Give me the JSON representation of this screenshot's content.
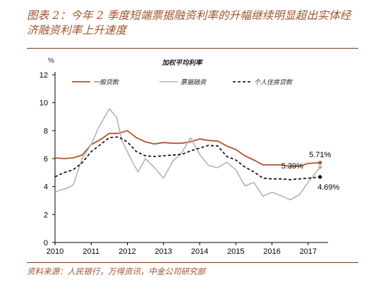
{
  "figure": {
    "title": "图表 2：今年 2 季度短端票据融资利率的升幅继续明显超出实体经济融资利率上升速度",
    "source": "资料来源：人民银行，万得资讯，中金公司研究部"
  },
  "colors": {
    "series_1": "#b5532a",
    "series_2": "#b3b3b3",
    "series_3": "#000000",
    "rule": "#7a3a1a",
    "title": "#a0522d"
  },
  "chart_data": {
    "type": "line",
    "title": "加权平均利率",
    "ylabel": "%",
    "xlabel": "",
    "xlim": [
      2010,
      2017.55
    ],
    "ylim": [
      0,
      12
    ],
    "xticks": [
      "2010",
      "2011",
      "2012",
      "2013",
      "2014",
      "2015",
      "2016",
      "2017"
    ],
    "yticks": [
      "0",
      "2",
      "4",
      "6",
      "8",
      "10",
      "12"
    ],
    "grid": false,
    "legend": "top",
    "series": [
      {
        "name": "一般贷款",
        "style": "solid",
        "end_label": "5.71%",
        "points": [
          [
            2010.0,
            6.05
          ],
          [
            2010.25,
            6.0
          ],
          [
            2010.5,
            6.05
          ],
          [
            2010.75,
            6.25
          ],
          [
            2011.0,
            7.0
          ],
          [
            2011.25,
            7.35
          ],
          [
            2011.5,
            7.8
          ],
          [
            2011.75,
            7.8
          ],
          [
            2012.0,
            8.0
          ],
          [
            2012.25,
            7.5
          ],
          [
            2012.5,
            7.2
          ],
          [
            2012.75,
            7.05
          ],
          [
            2013.0,
            7.15
          ],
          [
            2013.25,
            7.1
          ],
          [
            2013.5,
            7.1
          ],
          [
            2013.75,
            7.2
          ],
          [
            2014.0,
            7.4
          ],
          [
            2014.25,
            7.3
          ],
          [
            2014.5,
            7.25
          ],
          [
            2014.75,
            6.9
          ],
          [
            2015.0,
            6.65
          ],
          [
            2015.25,
            6.2
          ],
          [
            2015.5,
            5.9
          ],
          [
            2015.75,
            5.55
          ],
          [
            2016.0,
            5.55
          ],
          [
            2016.25,
            5.55
          ],
          [
            2016.5,
            5.45
          ],
          [
            2016.75,
            5.45
          ],
          [
            2017.0,
            5.65
          ],
          [
            2017.33,
            5.71
          ]
        ]
      },
      {
        "name": "票据融资",
        "style": "solid",
        "end_label": "",
        "points": [
          [
            2010.0,
            3.6
          ],
          [
            2010.15,
            3.75
          ],
          [
            2010.3,
            3.85
          ],
          [
            2010.5,
            4.1
          ],
          [
            2010.75,
            6.0
          ],
          [
            2011.0,
            7.0
          ],
          [
            2011.2,
            8.2
          ],
          [
            2011.5,
            9.55
          ],
          [
            2011.7,
            9.0
          ],
          [
            2011.85,
            7.3
          ],
          [
            2012.0,
            6.5
          ],
          [
            2012.15,
            5.7
          ],
          [
            2012.3,
            5.05
          ],
          [
            2012.5,
            6.0
          ],
          [
            2012.75,
            5.35
          ],
          [
            2013.0,
            4.6
          ],
          [
            2013.25,
            5.8
          ],
          [
            2013.5,
            6.4
          ],
          [
            2013.75,
            7.5
          ],
          [
            2014.0,
            6.3
          ],
          [
            2014.25,
            5.5
          ],
          [
            2014.5,
            5.35
          ],
          [
            2014.75,
            5.75
          ],
          [
            2015.0,
            5.2
          ],
          [
            2015.25,
            4.05
          ],
          [
            2015.5,
            4.3
          ],
          [
            2015.75,
            3.3
          ],
          [
            2016.0,
            3.6
          ],
          [
            2016.25,
            3.35
          ],
          [
            2016.5,
            3.05
          ],
          [
            2016.75,
            3.4
          ],
          [
            2017.0,
            4.3
          ],
          [
            2017.33,
            5.39
          ]
        ]
      },
      {
        "name": "个人住房贷款",
        "style": "dashed",
        "end_label": "",
        "points": [
          [
            2010.0,
            4.7
          ],
          [
            2010.25,
            5.0
          ],
          [
            2010.5,
            5.2
          ],
          [
            2010.75,
            5.7
          ],
          [
            2011.0,
            6.5
          ],
          [
            2011.25,
            7.0
          ],
          [
            2011.5,
            7.5
          ],
          [
            2011.75,
            7.55
          ],
          [
            2012.0,
            7.2
          ],
          [
            2012.25,
            6.5
          ],
          [
            2012.5,
            6.2
          ],
          [
            2012.75,
            6.15
          ],
          [
            2013.0,
            6.2
          ],
          [
            2013.25,
            6.25
          ],
          [
            2013.5,
            6.3
          ],
          [
            2013.75,
            6.55
          ],
          [
            2014.0,
            6.75
          ],
          [
            2014.25,
            6.95
          ],
          [
            2014.5,
            6.9
          ],
          [
            2014.75,
            6.15
          ],
          [
            2015.0,
            5.9
          ],
          [
            2015.25,
            5.4
          ],
          [
            2015.5,
            5.05
          ],
          [
            2015.75,
            4.6
          ],
          [
            2016.0,
            4.55
          ],
          [
            2016.25,
            4.55
          ],
          [
            2016.5,
            4.5
          ],
          [
            2016.75,
            4.55
          ],
          [
            2017.0,
            4.6
          ],
          [
            2017.33,
            4.69
          ]
        ]
      }
    ],
    "annotations": [
      "5.71%",
      "5.39%",
      "4.69%"
    ]
  }
}
